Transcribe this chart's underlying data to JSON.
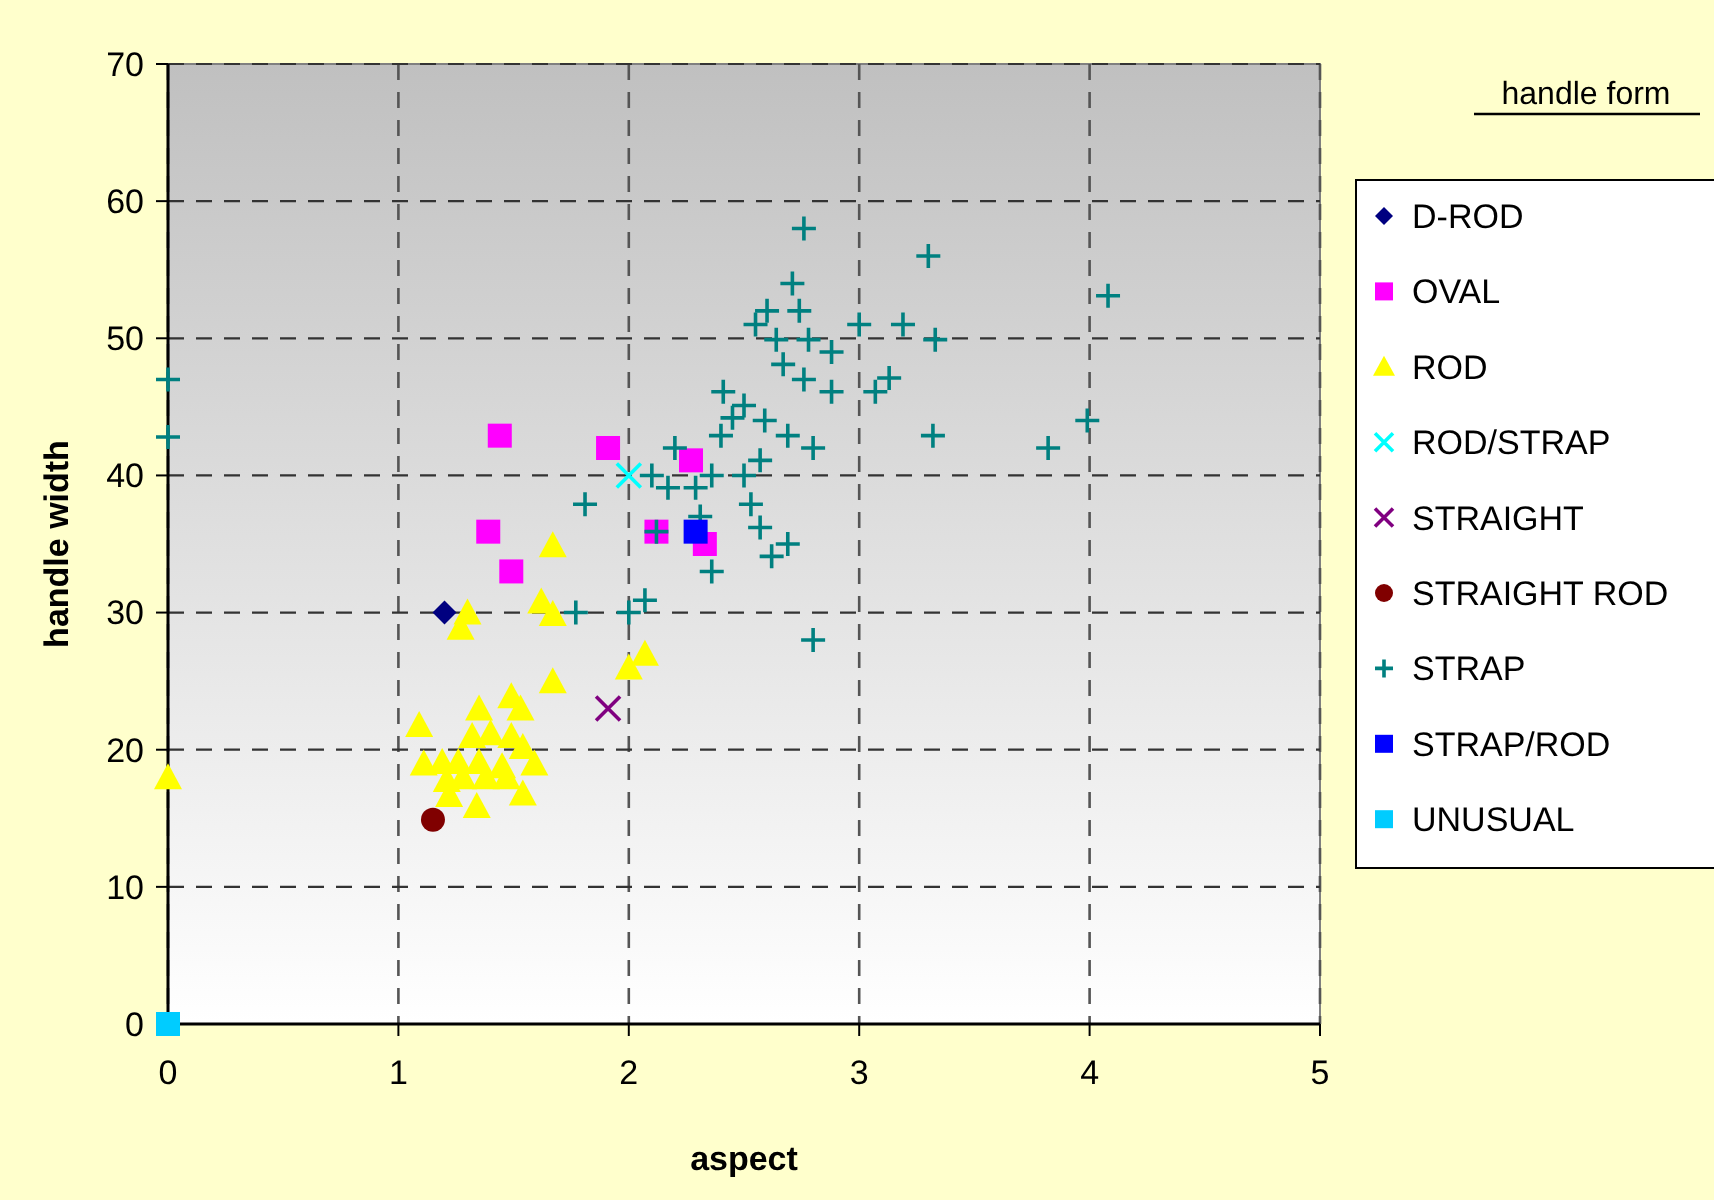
{
  "chart_data": {
    "type": "scatter",
    "xlabel": "aspect",
    "ylabel": "handle width",
    "legend_title": "handle form",
    "xlim": [
      0,
      5
    ],
    "xticks": [
      0,
      1,
      2,
      3,
      4,
      5
    ],
    "ylim": [
      0,
      70
    ],
    "yticks": [
      0,
      10,
      20,
      30,
      40,
      50,
      60,
      70
    ],
    "grid": true,
    "legend": "right",
    "series": [
      {
        "name": "D-ROD",
        "color": "#000080",
        "marker": "diamond",
        "x": [
          1.2
        ],
        "values": [
          30
        ]
      },
      {
        "name": "OVAL",
        "color": "#ff00ff",
        "marker": "square",
        "x": [
          1.44,
          1.39,
          1.49,
          1.91,
          2.27,
          2.12,
          2.33
        ],
        "values": [
          42.9,
          35.9,
          33,
          42,
          41.1,
          35.9,
          35
        ]
      },
      {
        "name": "ROD",
        "color": "#ffff00",
        "marker": "triangle",
        "x": [
          0,
          1.67,
          1.3,
          1.27,
          1.62,
          1.67,
          1.67,
          2.0,
          2.07,
          1.35,
          1.49,
          1.53,
          1.09,
          1.32,
          1.4,
          1.49,
          1.54,
          1.59,
          1.11,
          1.19,
          1.26,
          1.35,
          1.45,
          1.21,
          1.28,
          1.38,
          1.47,
          1.22,
          1.54,
          1.34
        ],
        "values": [
          18,
          34.9,
          30,
          28.9,
          30.8,
          29.9,
          25,
          26,
          27,
          23,
          23.9,
          23,
          21.8,
          21,
          21.2,
          21,
          20.2,
          19,
          19,
          19.1,
          19.1,
          19.1,
          18.8,
          17.8,
          18,
          18,
          18,
          16.7,
          16.8,
          15.9
        ]
      },
      {
        "name": "ROD/STRAP",
        "color": "#00ffff",
        "marker": "cross",
        "x": [
          2.0
        ],
        "values": [
          40
        ]
      },
      {
        "name": "STRAIGHT",
        "color": "#800080",
        "marker": "cross",
        "x": [
          1.91
        ],
        "values": [
          23
        ]
      },
      {
        "name": "STRAIGHT ROD",
        "color": "#800000",
        "marker": "circle",
        "x": [
          1.15
        ],
        "values": [
          14.9
        ]
      },
      {
        "name": "STRAP",
        "color": "#008080",
        "marker": "plus",
        "x": [
          0,
          0,
          2.76,
          3.3,
          4.08,
          2.71,
          2.6,
          2.74,
          2.55,
          3.0,
          3.19,
          2.64,
          2.78,
          2.88,
          3.33,
          2.67,
          2.76,
          2.88,
          3.13,
          3.07,
          2.41,
          2.5,
          2.45,
          2.59,
          2.4,
          2.69,
          3.32,
          3.99,
          3.82,
          2.8,
          2.2,
          2.57,
          2.1,
          2.36,
          2.5,
          2.17,
          2.29,
          2.53,
          1.81,
          2.31,
          2.12,
          2.57,
          2.69,
          2.62,
          2.36,
          2.07,
          2.0,
          1.77,
          2.8
        ],
        "values": [
          47,
          42.8,
          58,
          56,
          53.1,
          54,
          52,
          52,
          51,
          51,
          51,
          49.9,
          49.9,
          49,
          49.9,
          48.1,
          47,
          46.1,
          47.1,
          46.1,
          46.1,
          45.1,
          44.2,
          44,
          42.9,
          42.9,
          42.9,
          44,
          42,
          42,
          42,
          41.1,
          40,
          40,
          40,
          39.1,
          39.1,
          37.9,
          37.9,
          37,
          35.9,
          36.2,
          35,
          34.1,
          33,
          30.9,
          30,
          30,
          28
        ]
      },
      {
        "name": "STRAP/ROD",
        "color": "#0000ff",
        "marker": "square",
        "x": [
          2.29
        ],
        "values": [
          35.9
        ]
      },
      {
        "name": "UNUSUAL",
        "color": "#00ccff",
        "marker": "square",
        "x": [
          0
        ],
        "values": [
          0
        ]
      }
    ]
  }
}
